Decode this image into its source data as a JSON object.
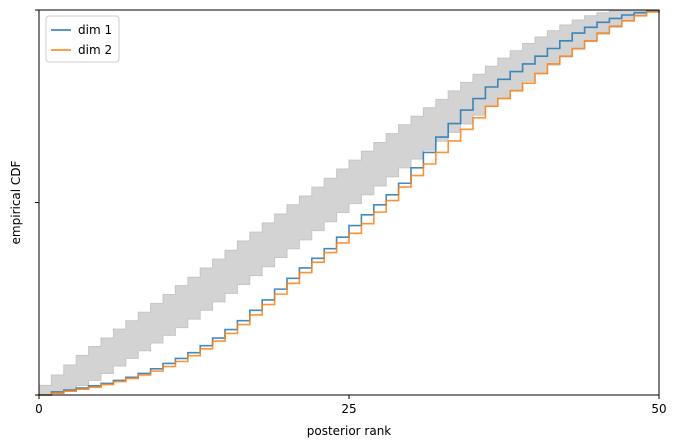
{
  "chart_data": {
    "type": "line",
    "xlabel": "posterior rank",
    "ylabel": "empirical CDF",
    "xlim": [
      0,
      50
    ],
    "ylim": [
      0,
      1
    ],
    "x_ticks": [
      0,
      25,
      50
    ],
    "y_ticks": [
      0,
      0.5,
      1
    ],
    "y_tick_labels_shown": false,
    "grid": false,
    "legend": {
      "placement": "top-left"
    },
    "band": {
      "color": "#d3d3d3",
      "x": [
        0,
        1,
        2,
        3,
        4,
        5,
        6,
        7,
        8,
        9,
        10,
        11,
        12,
        13,
        14,
        15,
        16,
        17,
        18,
        19,
        20,
        21,
        22,
        23,
        24,
        25,
        26,
        27,
        28,
        29,
        30,
        31,
        32,
        33,
        34,
        35,
        36,
        37,
        38,
        39,
        40,
        41,
        42,
        43,
        44,
        45,
        46,
        47,
        48,
        49,
        50
      ],
      "lower": [
        0,
        0.004,
        0.012,
        0.025,
        0.038,
        0.056,
        0.075,
        0.095,
        0.115,
        0.135,
        0.155,
        0.175,
        0.197,
        0.22,
        0.242,
        0.264,
        0.287,
        0.31,
        0.333,
        0.357,
        0.38,
        0.403,
        0.427,
        0.45,
        0.474,
        0.497,
        0.52,
        0.543,
        0.567,
        0.59,
        0.613,
        0.636,
        0.659,
        0.682,
        0.704,
        0.727,
        0.749,
        0.771,
        0.793,
        0.815,
        0.836,
        0.857,
        0.878,
        0.898,
        0.918,
        0.937,
        0.955,
        0.972,
        0.986,
        0.995,
        1
      ],
      "upper": [
        0.025,
        0.052,
        0.078,
        0.103,
        0.126,
        0.148,
        0.171,
        0.193,
        0.215,
        0.238,
        0.261,
        0.284,
        0.306,
        0.33,
        0.353,
        0.376,
        0.4,
        0.423,
        0.447,
        0.47,
        0.494,
        0.517,
        0.54,
        0.563,
        0.587,
        0.61,
        0.633,
        0.656,
        0.679,
        0.702,
        0.724,
        0.746,
        0.768,
        0.79,
        0.812,
        0.833,
        0.854,
        0.875,
        0.894,
        0.913,
        0.93,
        0.946,
        0.961,
        0.974,
        0.985,
        0.993,
        0.998,
        1,
        1,
        1,
        1
      ]
    },
    "series": [
      {
        "name": "dim 1",
        "color": "#1f77b4",
        "x": [
          0,
          1,
          2,
          3,
          4,
          5,
          6,
          7,
          8,
          9,
          10,
          11,
          12,
          13,
          14,
          15,
          16,
          17,
          18,
          19,
          20,
          21,
          22,
          23,
          24,
          25,
          26,
          27,
          28,
          29,
          30,
          31,
          32,
          33,
          34,
          35,
          36,
          37,
          38,
          39,
          40,
          41,
          42,
          43,
          44,
          45,
          46,
          47,
          48,
          49,
          50
        ],
        "y": [
          0,
          0.008,
          0.013,
          0.018,
          0.024,
          0.03,
          0.038,
          0.046,
          0.056,
          0.068,
          0.082,
          0.095,
          0.11,
          0.128,
          0.148,
          0.17,
          0.193,
          0.22,
          0.247,
          0.275,
          0.303,
          0.33,
          0.355,
          0.38,
          0.41,
          0.44,
          0.468,
          0.494,
          0.52,
          0.55,
          0.59,
          0.63,
          0.67,
          0.705,
          0.74,
          0.77,
          0.8,
          0.82,
          0.84,
          0.86,
          0.88,
          0.9,
          0.92,
          0.94,
          0.955,
          0.968,
          0.978,
          0.987,
          0.993,
          0.997,
          1
        ]
      },
      {
        "name": "dim 2",
        "color": "#ff7f0e",
        "x": [
          0,
          1,
          2,
          3,
          4,
          5,
          6,
          7,
          8,
          9,
          10,
          11,
          12,
          13,
          14,
          15,
          16,
          17,
          18,
          19,
          20,
          21,
          22,
          23,
          24,
          25,
          26,
          27,
          28,
          29,
          30,
          31,
          32,
          33,
          34,
          35,
          36,
          37,
          38,
          39,
          40,
          41,
          42,
          43,
          44,
          45,
          46,
          47,
          48,
          49,
          50
        ],
        "y": [
          0,
          0.005,
          0.01,
          0.015,
          0.02,
          0.027,
          0.035,
          0.043,
          0.052,
          0.062,
          0.074,
          0.087,
          0.102,
          0.12,
          0.14,
          0.16,
          0.183,
          0.208,
          0.235,
          0.262,
          0.29,
          0.318,
          0.345,
          0.37,
          0.395,
          0.42,
          0.445,
          0.475,
          0.505,
          0.54,
          0.57,
          0.6,
          0.63,
          0.66,
          0.69,
          0.72,
          0.75,
          0.77,
          0.79,
          0.81,
          0.835,
          0.86,
          0.88,
          0.9,
          0.92,
          0.94,
          0.958,
          0.972,
          0.985,
          0.995,
          1
        ]
      }
    ]
  }
}
